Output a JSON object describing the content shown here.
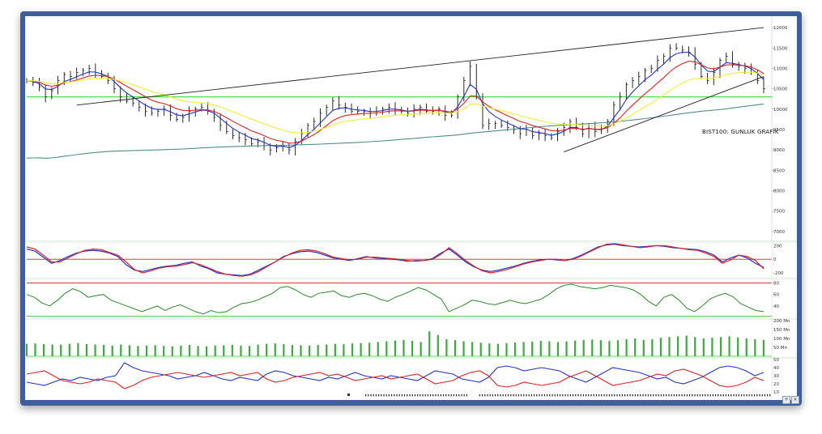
{
  "chart_data": [
    {
      "type": "candlestick",
      "annotation": "BIST100: GUNLUK GRAFİK",
      "price_axis_ticks": [
        12000,
        11500,
        11000,
        10500,
        10000,
        9500,
        9000,
        8500,
        8000,
        7500,
        7000
      ],
      "ylim": [
        6800,
        12200
      ],
      "horizontal_level": 10300,
      "series": [
        {
          "name": "",
          "role": "close",
          "values": [
            10700,
            10650,
            10550,
            10300,
            10450,
            10700,
            10850,
            10800,
            10900,
            10950,
            11000,
            10900,
            10800,
            10700,
            10500,
            10300,
            10200,
            10150,
            10050,
            9950,
            9900,
            9950,
            10000,
            9850,
            9750,
            9800,
            9950,
            10000,
            10050,
            9950,
            9800,
            9600,
            9450,
            9350,
            9300,
            9250,
            9150,
            9200,
            9100,
            9000,
            9050,
            9100,
            9000,
            9200,
            9400,
            9600,
            9700,
            9900,
            10050,
            10200,
            10100,
            10050,
            9950,
            9950,
            9950,
            9900,
            9950,
            10000,
            10050,
            10000,
            9950,
            9900,
            10000,
            10050,
            9950,
            9950,
            10000,
            9850,
            9850,
            10300,
            10700,
            11050,
            10300,
            9600,
            9650,
            9650,
            9600,
            9550,
            9500,
            9400,
            9500,
            9350,
            9400,
            9350,
            9300,
            9450,
            9550,
            9700,
            9550,
            9400,
            9600,
            9450,
            9500,
            9700,
            10100,
            10300,
            10600,
            10700,
            10800,
            10950,
            11000,
            11200,
            11300,
            11500,
            11500,
            11450,
            11400,
            11100,
            10800,
            10700,
            10900,
            11200,
            11300,
            11100,
            11050,
            11000,
            10900,
            10700,
            10500
          ]
        },
        {
          "name": "",
          "role": "ema-short",
          "color": "#2233cc"
        },
        {
          "name": "",
          "role": "ema-mid",
          "color": "#dd2222"
        },
        {
          "name": "",
          "role": "ema-long",
          "color": "#eeee33"
        },
        {
          "name": "",
          "role": "ma-200",
          "color": "#4f8f86"
        }
      ],
      "trendlines": [
        {
          "from": [
            8,
            10100
          ],
          "to": [
            118,
            12000
          ]
        },
        {
          "from": [
            86,
            8950
          ],
          "to": [
            118,
            10800
          ]
        }
      ]
    },
    {
      "type": "line",
      "axis_ticks": [
        "200",
        "0",
        "-200"
      ],
      "reference_value": 0,
      "series": [
        {
          "name": "",
          "color": "#2233cc",
          "values": [
            150,
            120,
            30,
            -60,
            -20,
            40,
            90,
            120,
            130,
            120,
            90,
            40,
            -80,
            -160,
            -180,
            -150,
            -120,
            -100,
            -90,
            -60,
            -40,
            -100,
            -140,
            -200,
            -220,
            -230,
            -240,
            -220,
            -160,
            -100,
            -40,
            40,
            80,
            110,
            120,
            100,
            60,
            20,
            0,
            -20,
            10,
            40,
            20,
            10,
            0,
            -10,
            -30,
            -20,
            -20,
            10,
            90,
            150,
            60,
            -40,
            -110,
            -160,
            -180,
            -160,
            -130,
            -100,
            -60,
            -30,
            -10,
            0,
            -10,
            -20,
            10,
            60,
            120,
            180,
            210,
            220,
            200,
            190,
            180,
            190,
            200,
            190,
            170,
            160,
            150,
            140,
            110,
            60,
            -40,
            20,
            60,
            20,
            -60,
            -120
          ]
        },
        {
          "name": "",
          "color": "#dd2222",
          "values": [
            180,
            150,
            60,
            -40,
            -40,
            20,
            80,
            130,
            150,
            140,
            100,
            60,
            -40,
            -150,
            -200,
            -170,
            -130,
            -110,
            -100,
            -80,
            -50,
            -80,
            -130,
            -180,
            -220,
            -240,
            -250,
            -230,
            -180,
            -110,
            -40,
            30,
            90,
            130,
            140,
            120,
            80,
            30,
            10,
            -10,
            0,
            30,
            30,
            20,
            10,
            0,
            -20,
            -30,
            -20,
            0,
            70,
            170,
            80,
            -20,
            -100,
            -170,
            -200,
            -180,
            -150,
            -110,
            -70,
            -40,
            -20,
            0,
            0,
            -20,
            0,
            50,
            110,
            170,
            220,
            230,
            210,
            190,
            170,
            180,
            200,
            200,
            180,
            160,
            140,
            130,
            90,
            40,
            -60,
            -10,
            60,
            40,
            -20,
            -140
          ]
        }
      ]
    },
    {
      "type": "line",
      "axis_ticks": [
        "80",
        "60",
        "40"
      ],
      "upper_level": 80,
      "lower_level": 20,
      "series": [
        {
          "name": "",
          "color": "#2a8a2a",
          "values": [
            60,
            55,
            45,
            40,
            50,
            62,
            70,
            65,
            55,
            58,
            60,
            50,
            45,
            40,
            35,
            30,
            35,
            40,
            32,
            38,
            42,
            36,
            30,
            26,
            32,
            28,
            30,
            38,
            44,
            46,
            50,
            56,
            62,
            72,
            74,
            68,
            60,
            55,
            62,
            64,
            66,
            58,
            55,
            60,
            62,
            58,
            52,
            48,
            55,
            60,
            66,
            72,
            68,
            60,
            52,
            30,
            36,
            42,
            50,
            48,
            44,
            42,
            46,
            50,
            46,
            44,
            48,
            52,
            60,
            70,
            76,
            78,
            74,
            72,
            70,
            72,
            76,
            74,
            72,
            68,
            60,
            48,
            40,
            55,
            60,
            50,
            36,
            30,
            40,
            52,
            58,
            62,
            56,
            44,
            38,
            32,
            30
          ]
        }
      ]
    },
    {
      "type": "bar",
      "axis_ticks": [
        "200 Mn",
        "150 Mn",
        "100 Mn",
        "50 Mn"
      ],
      "color": "#3fa83f",
      "values": [
        70,
        72,
        68,
        66,
        65,
        70,
        74,
        68,
        66,
        64,
        60,
        66,
        62,
        58,
        60,
        62,
        58,
        56,
        60,
        64,
        58,
        56,
        60,
        62,
        64,
        60,
        58,
        66,
        70,
        72,
        68,
        64,
        62,
        60,
        64,
        66,
        70,
        68,
        72,
        74,
        76,
        80,
        84,
        88,
        92,
        86,
        80,
        140,
        120,
        96,
        90,
        84,
        80,
        76,
        72,
        70,
        74,
        78,
        80,
        82,
        86,
        84,
        80,
        84,
        88,
        92,
        94,
        90,
        86,
        90,
        96,
        100,
        92,
        96,
        104,
        108,
        112,
        116,
        108,
        100,
        104,
        108,
        112,
        106,
        100,
        96,
        92
      ]
    },
    {
      "type": "line",
      "axis_ticks": [
        "50",
        "40",
        "30",
        "20",
        "10"
      ],
      "series": [
        {
          "name": "",
          "color": "#2233cc",
          "values": [
            22,
            20,
            18,
            22,
            26,
            24,
            28,
            26,
            24,
            28,
            30,
            46,
            40,
            36,
            34,
            32,
            30,
            26,
            28,
            30,
            34,
            30,
            26,
            24,
            28,
            26,
            24,
            32,
            36,
            34,
            30,
            28,
            26,
            24,
            28,
            26,
            30,
            34,
            30,
            28,
            26,
            30,
            28,
            26,
            24,
            30,
            36,
            34,
            32,
            26,
            24,
            22,
            28,
            40,
            42,
            40,
            36,
            38,
            40,
            38,
            36,
            30,
            26,
            22,
            28,
            34,
            40,
            38,
            36,
            34,
            30,
            26,
            28,
            22,
            20,
            24,
            28,
            34,
            40,
            42,
            40,
            36,
            30,
            34
          ]
        },
        {
          "name": "",
          "color": "#dd2222",
          "values": [
            32,
            34,
            36,
            30,
            24,
            22,
            20,
            22,
            26,
            24,
            22,
            14,
            18,
            24,
            28,
            30,
            32,
            34,
            32,
            30,
            28,
            30,
            32,
            34,
            30,
            32,
            34,
            26,
            22,
            24,
            28,
            30,
            32,
            34,
            30,
            32,
            28,
            24,
            26,
            28,
            30,
            26,
            28,
            30,
            32,
            26,
            20,
            22,
            24,
            30,
            34,
            36,
            30,
            18,
            16,
            18,
            22,
            20,
            18,
            20,
            22,
            28,
            32,
            36,
            30,
            24,
            18,
            20,
            22,
            24,
            28,
            32,
            30,
            36,
            38,
            34,
            30,
            24,
            18,
            16,
            18,
            22,
            28,
            24
          ]
        }
      ]
    }
  ]
}
